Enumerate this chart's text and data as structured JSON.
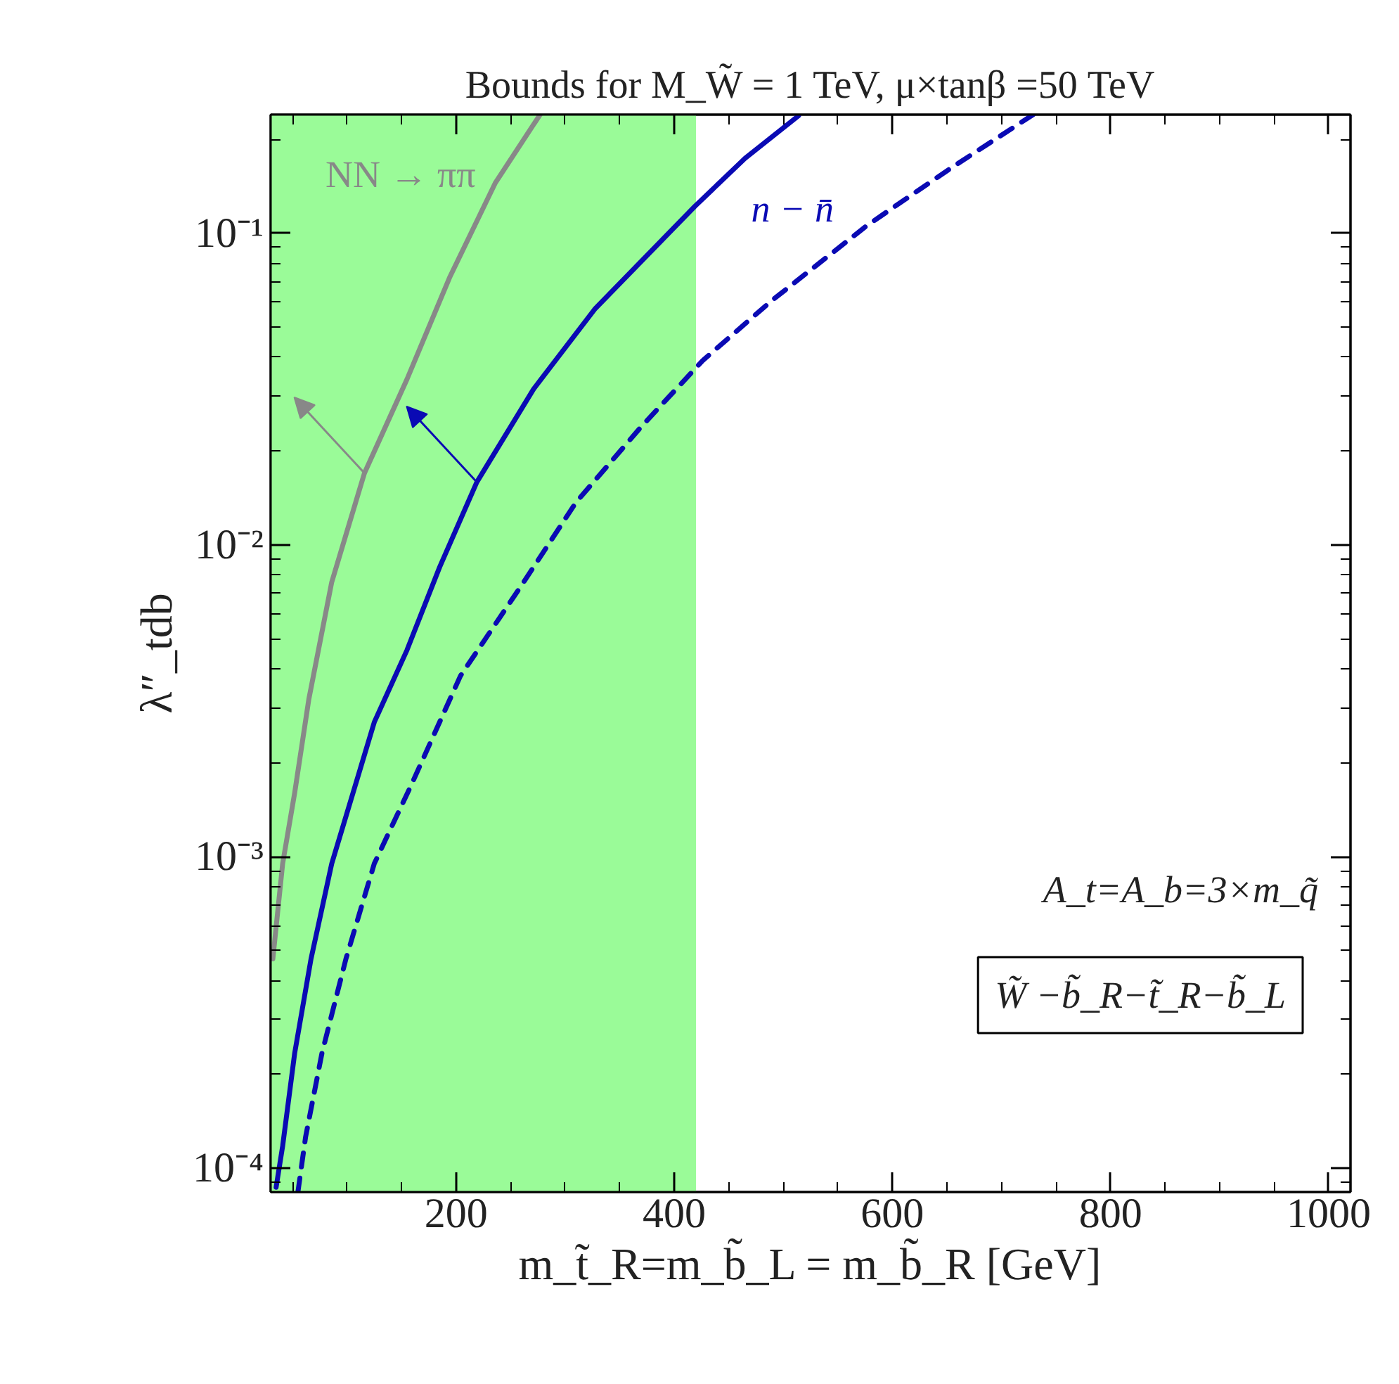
{
  "chart_data": {
    "type": "line",
    "title": "Bounds for M_W̃ = 1 TeV, μ×tanβ =50 TeV",
    "xlabel": "m_t̃_R=m_b̃_L = m_b̃_R [GeV]",
    "ylabel": "λ″_tdb",
    "log": "y",
    "grid": false,
    "xlim": [
      30,
      1020
    ],
    "ylim": [
      8.4e-05,
      0.24
    ],
    "xticks": [
      200,
      400,
      600,
      800,
      1000
    ],
    "yticks": [
      {
        "value": 0.0001,
        "label": "10⁻⁴"
      },
      {
        "value": 0.001,
        "label": "10⁻³"
      },
      {
        "value": 0.01,
        "label": "10⁻²"
      },
      {
        "value": 0.1,
        "label": "10⁻¹"
      }
    ],
    "bands": [
      {
        "axis": "x",
        "from": 30,
        "to": 420,
        "color": "#9afb98"
      }
    ],
    "series": [
      {
        "name": "NN → ππ",
        "color": "#888888",
        "line_style": "solid",
        "x": [
          32,
          41,
          52,
          65,
          86,
          116,
          155,
          194,
          236,
          277
        ],
        "values": [
          0.00047,
          0.00095,
          0.0016,
          0.0032,
          0.0076,
          0.017,
          0.034,
          0.072,
          0.145,
          0.24
        ]
      },
      {
        "name": "n − n̄",
        "color": "#0a0ab4",
        "line_style": "solid",
        "x": [
          35,
          41,
          52,
          67,
          86,
          125,
          155,
          185,
          219,
          271,
          327,
          419,
          465,
          514
        ],
        "values": [
          8.7e-05,
          0.000118,
          0.000234,
          0.00047,
          0.00095,
          0.0027,
          0.0046,
          0.0085,
          0.0159,
          0.0316,
          0.057,
          0.122,
          0.174,
          0.238
        ]
      },
      {
        "color": "#0a0ab4",
        "line_style": "dashed",
        "x": [
          55,
          62,
          77,
          99,
          125,
          159,
          204,
          262,
          310,
          370,
          426,
          490,
          577,
          654,
          729
        ],
        "values": [
          8.4e-05,
          0.000126,
          0.000234,
          0.00047,
          0.00095,
          0.0017,
          0.0038,
          0.0076,
          0.0137,
          0.024,
          0.039,
          0.061,
          0.106,
          0.162,
          0.24
        ]
      }
    ],
    "annotations": [
      "A_t=A_b=3×m_q̃",
      "W̃ −b̃_R−t̃_R−b̃_L"
    ]
  }
}
